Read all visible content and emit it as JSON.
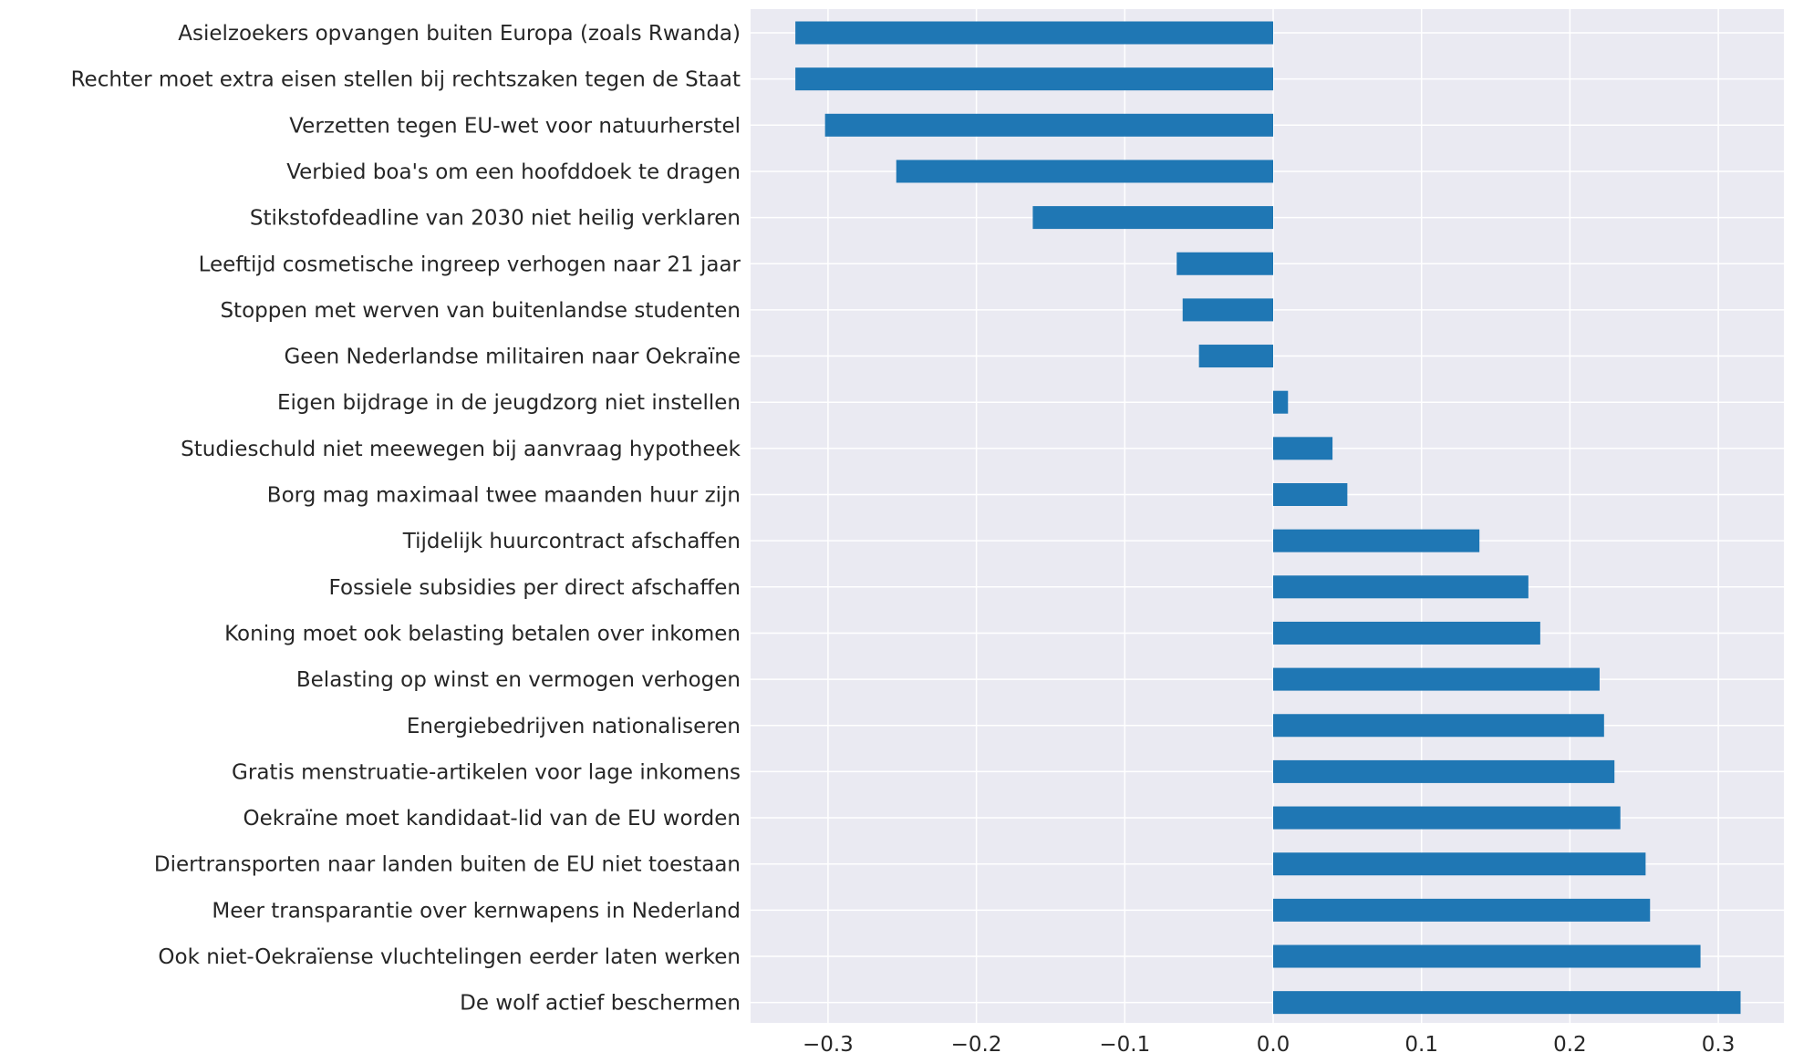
{
  "chart_data": {
    "type": "bar",
    "orientation": "horizontal",
    "title": "",
    "xlabel": "",
    "ylabel": "",
    "xlim": [
      -0.35,
      0.35
    ],
    "grid": true,
    "bar_color": "#1f77b4",
    "background_color": "#eaeaf2",
    "grid_color": "#ffffff",
    "xticks": [
      {
        "value": -0.3,
        "label": "−0.3"
      },
      {
        "value": -0.2,
        "label": "−0.2"
      },
      {
        "value": -0.1,
        "label": "−0.1"
      },
      {
        "value": 0.0,
        "label": "0.0"
      },
      {
        "value": 0.1,
        "label": "0.1"
      },
      {
        "value": 0.2,
        "label": "0.2"
      },
      {
        "value": 0.3,
        "label": "0.3"
      }
    ],
    "categories": [
      "Asielzoekers opvangen buiten Europa (zoals Rwanda)",
      "Rechter moet extra eisen stellen bij rechtszaken tegen de Staat",
      "Verzetten tegen EU-wet voor natuurherstel",
      "Verbied boa's om een hoofddoek te dragen",
      "Stikstofdeadline van 2030 niet heilig verklaren",
      "Leeftijd cosmetische ingreep verhogen naar 21 jaar",
      "Stoppen met werven van buitenlandse studenten",
      "Geen Nederlandse militairen naar Oekraïne",
      "Eigen bijdrage in de jeugdzorg niet instellen",
      "Studieschuld niet meewegen bij aanvraag hypotheek",
      "Borg mag maximaal twee maanden huur zijn",
      "Tijdelijk huurcontract afschaffen",
      "Fossiele subsidies per direct afschaffen",
      "Koning moet ook belasting betalen over inkomen",
      "Belasting op winst en vermogen verhogen",
      "Energiebedrijven nationaliseren",
      "Gratis menstruatie-artikelen voor lage inkomens",
      "Oekraïne moet kandidaat-lid van de EU worden",
      "Diertransporten naar landen buiten de EU niet toestaan",
      "Meer transparantie over kernwapens in Nederland",
      "Ook niet-Oekraïense vluchtelingen eerder laten werken",
      "De wolf actief beschermen"
    ],
    "values": [
      -0.322,
      -0.322,
      -0.302,
      -0.254,
      -0.162,
      -0.065,
      -0.061,
      -0.05,
      0.01,
      0.04,
      0.05,
      0.139,
      0.172,
      0.18,
      0.22,
      0.223,
      0.23,
      0.234,
      0.251,
      0.254,
      0.288,
      0.315
    ]
  }
}
